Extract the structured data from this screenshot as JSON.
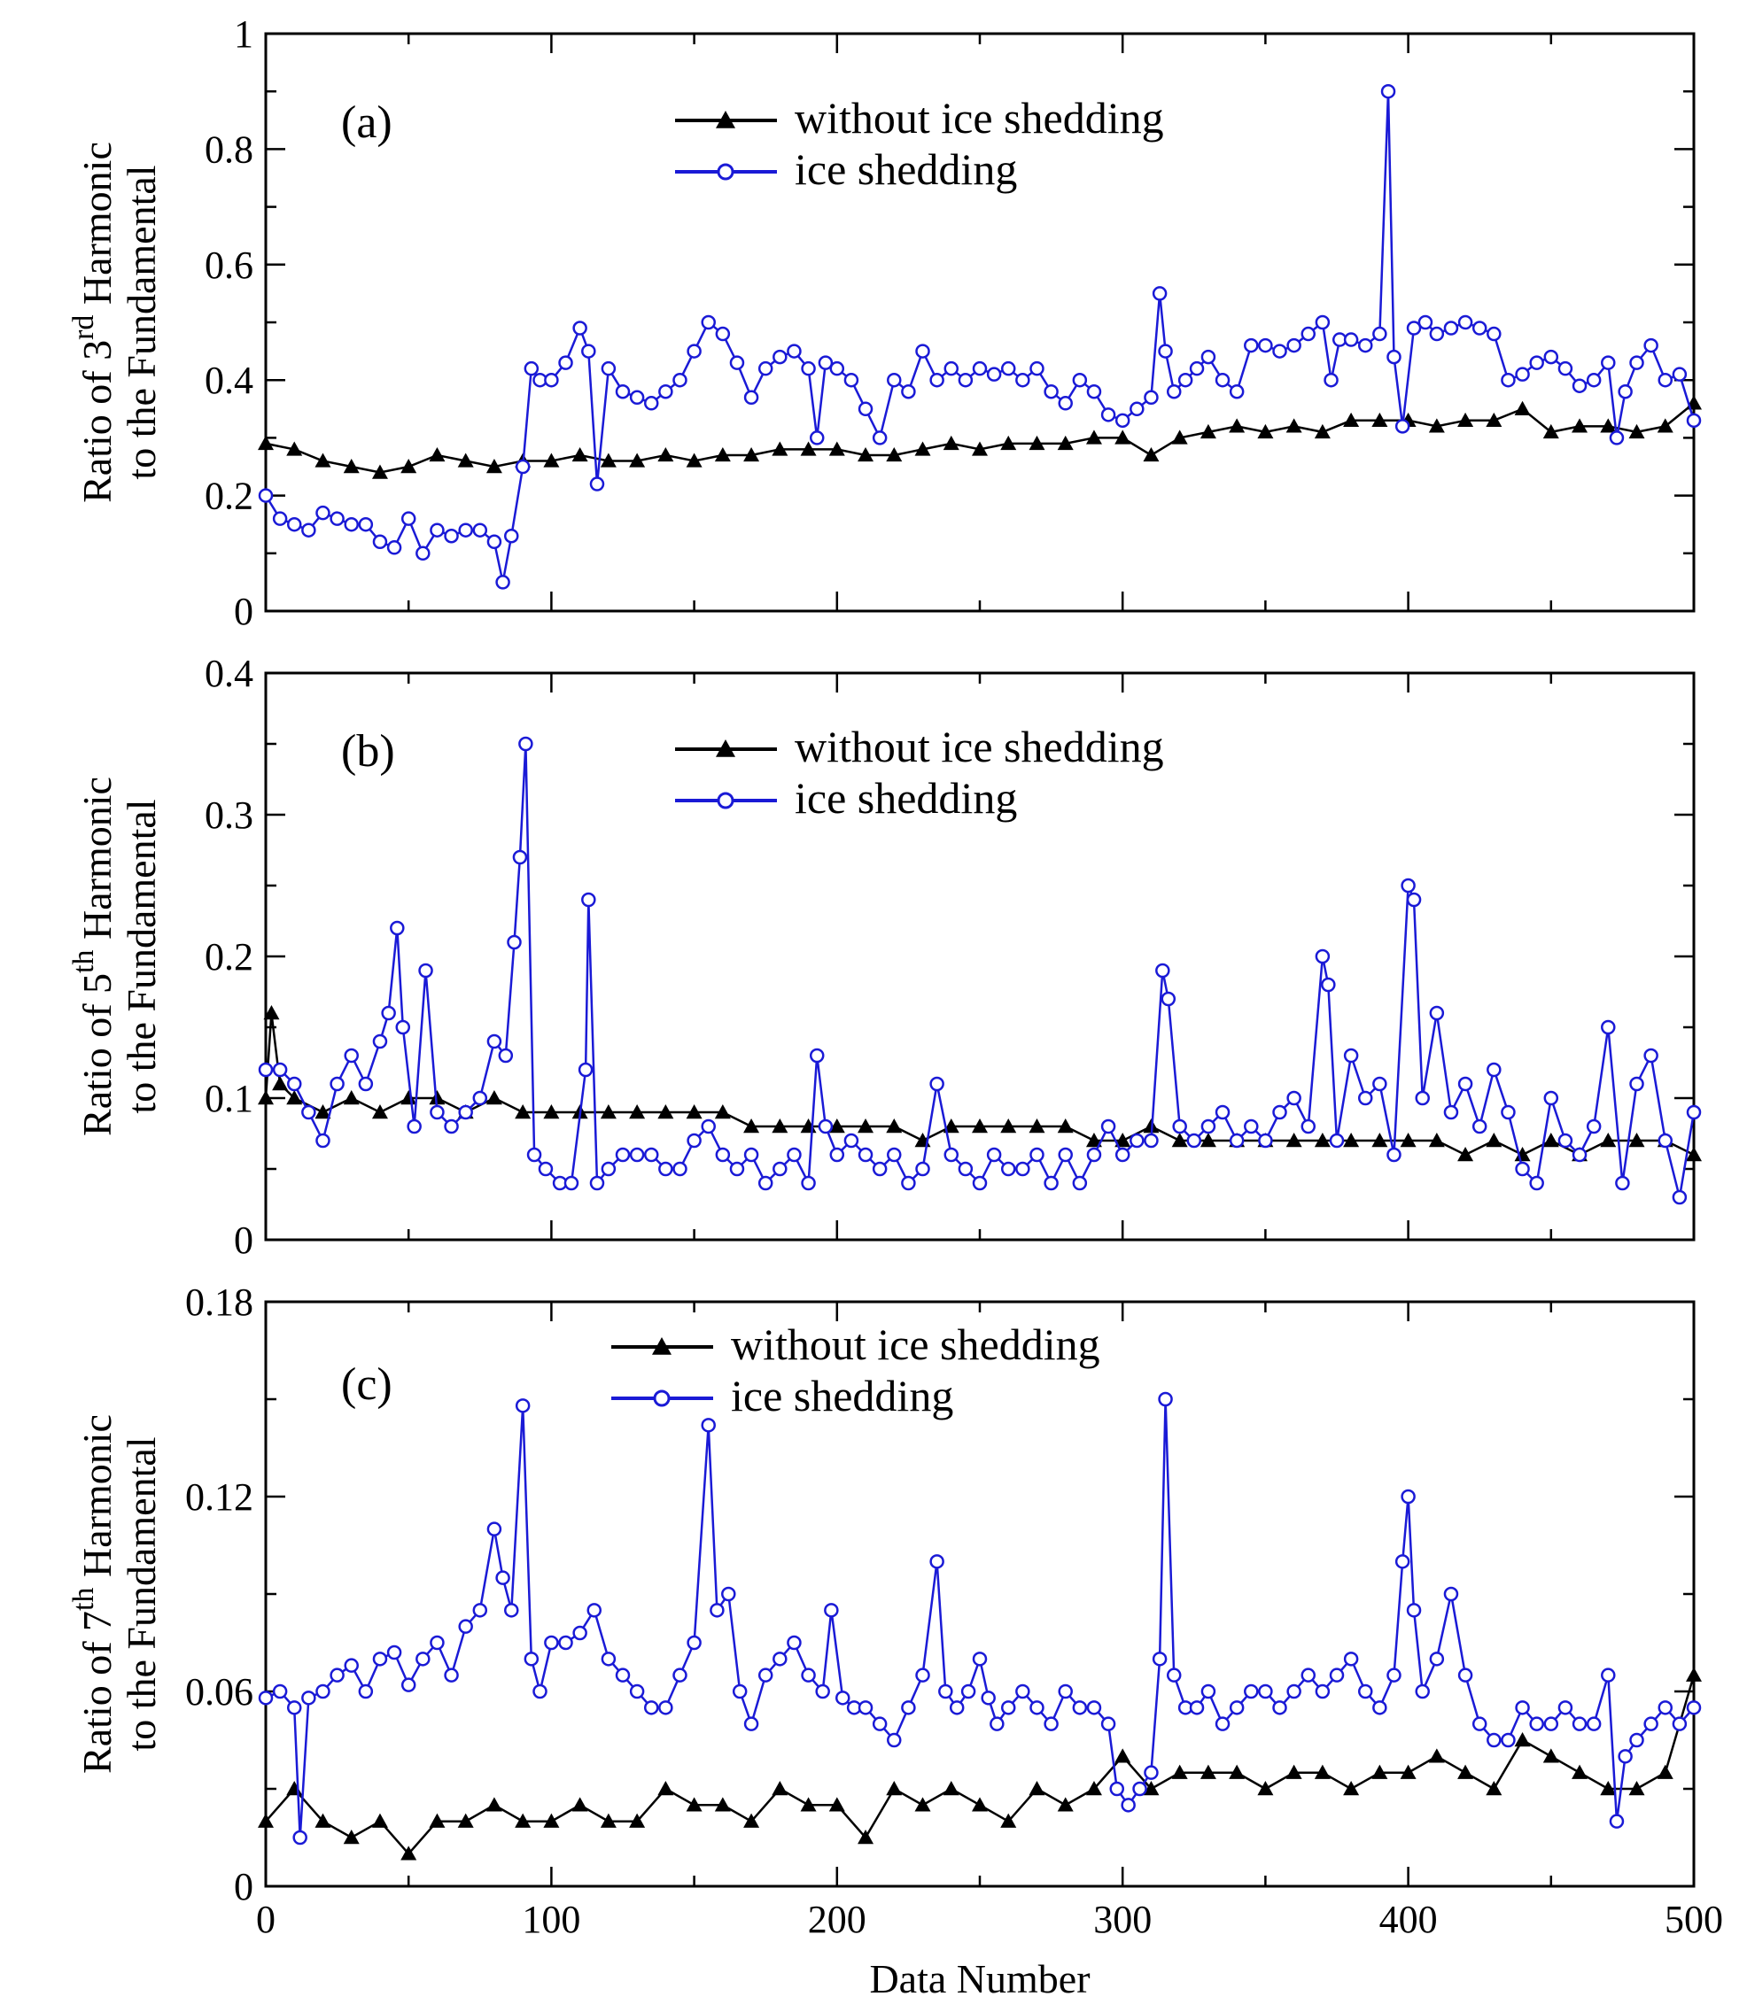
{
  "figure": {
    "xlabel": "Data Number",
    "x_tick_labels": [
      "0",
      "100",
      "200",
      "300",
      "400",
      "500"
    ]
  },
  "colors": {
    "without": "#000000",
    "ice": "#1a1ad6"
  },
  "chart_data": [
    {
      "type": "line",
      "panel_label": "(a)",
      "ylabel_line1": {
        "pre": "Ratio of  3",
        "sup": "rd",
        "post": " Harmonic"
      },
      "ylabel_line2": "to the Fundamental",
      "xlim": [
        0,
        500
      ],
      "ylim": [
        0,
        1
      ],
      "y_tick_labels": [
        "0",
        "0.2",
        "0.4",
        "0.6",
        "0.8",
        "1"
      ],
      "y_tick_values": [
        0,
        0.2,
        0.4,
        0.6,
        0.8,
        1
      ],
      "series": [
        {
          "name": "without ice shedding",
          "marker": "triangle",
          "x": [
            0,
            10,
            20,
            30,
            40,
            50,
            60,
            70,
            80,
            90,
            100,
            110,
            120,
            130,
            140,
            150,
            160,
            170,
            180,
            190,
            200,
            210,
            220,
            230,
            240,
            250,
            260,
            270,
            280,
            290,
            300,
            310,
            320,
            330,
            340,
            350,
            360,
            370,
            380,
            390,
            400,
            410,
            420,
            430,
            440,
            450,
            460,
            470,
            480,
            490,
            500
          ],
          "values": [
            0.29,
            0.28,
            0.26,
            0.25,
            0.24,
            0.25,
            0.27,
            0.26,
            0.25,
            0.26,
            0.26,
            0.27,
            0.26,
            0.26,
            0.27,
            0.26,
            0.27,
            0.27,
            0.28,
            0.28,
            0.28,
            0.27,
            0.27,
            0.28,
            0.29,
            0.28,
            0.29,
            0.29,
            0.29,
            0.3,
            0.3,
            0.27,
            0.3,
            0.31,
            0.32,
            0.31,
            0.32,
            0.31,
            0.33,
            0.33,
            0.33,
            0.32,
            0.33,
            0.33,
            0.35,
            0.31,
            0.32,
            0.32,
            0.31,
            0.32,
            0.36
          ]
        },
        {
          "name": "ice shedding",
          "marker": "circle",
          "x": [
            0,
            5,
            10,
            15,
            20,
            25,
            30,
            35,
            40,
            45,
            50,
            55,
            60,
            65,
            70,
            75,
            80,
            83,
            86,
            90,
            93,
            96,
            100,
            105,
            110,
            113,
            116,
            120,
            125,
            130,
            135,
            140,
            145,
            150,
            155,
            160,
            165,
            170,
            175,
            180,
            185,
            190,
            193,
            196,
            200,
            205,
            210,
            215,
            220,
            225,
            230,
            235,
            240,
            245,
            250,
            255,
            260,
            265,
            270,
            275,
            280,
            285,
            290,
            295,
            300,
            305,
            310,
            313,
            315,
            318,
            322,
            326,
            330,
            335,
            340,
            345,
            350,
            355,
            360,
            365,
            370,
            373,
            376,
            380,
            385,
            390,
            393,
            395,
            398,
            402,
            406,
            410,
            415,
            420,
            425,
            430,
            435,
            440,
            445,
            450,
            455,
            460,
            465,
            470,
            473,
            476,
            480,
            485,
            490,
            495,
            500
          ],
          "values": [
            0.2,
            0.16,
            0.15,
            0.14,
            0.17,
            0.16,
            0.15,
            0.15,
            0.12,
            0.11,
            0.16,
            0.1,
            0.14,
            0.13,
            0.14,
            0.14,
            0.12,
            0.05,
            0.13,
            0.25,
            0.42,
            0.4,
            0.4,
            0.43,
            0.49,
            0.45,
            0.22,
            0.42,
            0.38,
            0.37,
            0.36,
            0.38,
            0.4,
            0.45,
            0.5,
            0.48,
            0.43,
            0.37,
            0.42,
            0.44,
            0.45,
            0.42,
            0.3,
            0.43,
            0.42,
            0.4,
            0.35,
            0.3,
            0.4,
            0.38,
            0.45,
            0.4,
            0.42,
            0.4,
            0.42,
            0.41,
            0.42,
            0.4,
            0.42,
            0.38,
            0.36,
            0.4,
            0.38,
            0.34,
            0.33,
            0.35,
            0.37,
            0.55,
            0.45,
            0.38,
            0.4,
            0.42,
            0.44,
            0.4,
            0.38,
            0.46,
            0.46,
            0.45,
            0.46,
            0.48,
            0.5,
            0.4,
            0.47,
            0.47,
            0.46,
            0.48,
            0.9,
            0.44,
            0.32,
            0.49,
            0.5,
            0.48,
            0.49,
            0.5,
            0.49,
            0.48,
            0.4,
            0.41,
            0.43,
            0.44,
            0.42,
            0.39,
            0.4,
            0.43,
            0.3,
            0.38,
            0.43,
            0.46,
            0.4,
            0.41,
            0.33
          ]
        }
      ]
    },
    {
      "type": "line",
      "panel_label": "(b)",
      "ylabel_line1": {
        "pre": "Ratio of  5",
        "sup": "th",
        "post": " Harmonic"
      },
      "ylabel_line2": "to the Fundamental",
      "xlim": [
        0,
        500
      ],
      "ylim": [
        0,
        0.4
      ],
      "y_tick_labels": [
        "0",
        "0.1",
        "0.2",
        "0.3",
        "0.4"
      ],
      "y_tick_values": [
        0,
        0.1,
        0.2,
        0.3,
        0.4
      ],
      "series": [
        {
          "name": "without ice shedding",
          "marker": "triangle",
          "x": [
            0,
            2,
            5,
            10,
            20,
            30,
            40,
            50,
            60,
            70,
            80,
            90,
            100,
            110,
            120,
            130,
            140,
            150,
            160,
            170,
            180,
            190,
            200,
            210,
            220,
            230,
            240,
            250,
            260,
            270,
            280,
            290,
            300,
            310,
            320,
            330,
            340,
            350,
            360,
            370,
            380,
            390,
            400,
            410,
            420,
            430,
            440,
            450,
            460,
            470,
            480,
            490,
            500
          ],
          "values": [
            0.1,
            0.16,
            0.11,
            0.1,
            0.09,
            0.1,
            0.09,
            0.1,
            0.1,
            0.09,
            0.1,
            0.09,
            0.09,
            0.09,
            0.09,
            0.09,
            0.09,
            0.09,
            0.09,
            0.08,
            0.08,
            0.08,
            0.08,
            0.08,
            0.08,
            0.07,
            0.08,
            0.08,
            0.08,
            0.08,
            0.08,
            0.07,
            0.07,
            0.08,
            0.07,
            0.07,
            0.07,
            0.07,
            0.07,
            0.07,
            0.07,
            0.07,
            0.07,
            0.07,
            0.06,
            0.07,
            0.06,
            0.07,
            0.06,
            0.07,
            0.07,
            0.07,
            0.06
          ]
        },
        {
          "name": "ice shedding",
          "marker": "circle",
          "x": [
            0,
            5,
            10,
            15,
            20,
            25,
            30,
            35,
            40,
            43,
            46,
            48,
            52,
            56,
            60,
            65,
            70,
            75,
            80,
            84,
            87,
            89,
            91,
            94,
            98,
            103,
            107,
            112,
            113,
            116,
            120,
            125,
            130,
            135,
            140,
            145,
            150,
            155,
            160,
            165,
            170,
            175,
            180,
            185,
            190,
            193,
            196,
            200,
            205,
            210,
            215,
            220,
            225,
            230,
            235,
            240,
            245,
            250,
            255,
            260,
            265,
            270,
            275,
            280,
            285,
            290,
            295,
            300,
            305,
            310,
            314,
            316,
            320,
            325,
            330,
            335,
            340,
            345,
            350,
            355,
            360,
            365,
            370,
            372,
            375,
            380,
            385,
            390,
            395,
            400,
            402,
            405,
            410,
            415,
            420,
            425,
            430,
            435,
            440,
            445,
            450,
            455,
            460,
            465,
            470,
            475,
            480,
            485,
            490,
            495,
            500
          ],
          "values": [
            0.12,
            0.12,
            0.11,
            0.09,
            0.07,
            0.11,
            0.13,
            0.11,
            0.14,
            0.16,
            0.22,
            0.15,
            0.08,
            0.19,
            0.09,
            0.08,
            0.09,
            0.1,
            0.14,
            0.13,
            0.21,
            0.27,
            0.35,
            0.06,
            0.05,
            0.04,
            0.04,
            0.12,
            0.24,
            0.04,
            0.05,
            0.06,
            0.06,
            0.06,
            0.05,
            0.05,
            0.07,
            0.08,
            0.06,
            0.05,
            0.06,
            0.04,
            0.05,
            0.06,
            0.04,
            0.13,
            0.08,
            0.06,
            0.07,
            0.06,
            0.05,
            0.06,
            0.04,
            0.05,
            0.11,
            0.06,
            0.05,
            0.04,
            0.06,
            0.05,
            0.05,
            0.06,
            0.04,
            0.06,
            0.04,
            0.06,
            0.08,
            0.06,
            0.07,
            0.07,
            0.19,
            0.17,
            0.08,
            0.07,
            0.08,
            0.09,
            0.07,
            0.08,
            0.07,
            0.09,
            0.1,
            0.08,
            0.2,
            0.18,
            0.07,
            0.13,
            0.1,
            0.11,
            0.06,
            0.25,
            0.24,
            0.1,
            0.16,
            0.09,
            0.11,
            0.08,
            0.12,
            0.09,
            0.05,
            0.04,
            0.1,
            0.07,
            0.06,
            0.08,
            0.15,
            0.04,
            0.11,
            0.13,
            0.07,
            0.03,
            0.09
          ]
        }
      ]
    },
    {
      "type": "line",
      "panel_label": "(c)",
      "ylabel_line1": {
        "pre": "Ratio of  7",
        "sup": "th",
        "post": " Harmonic"
      },
      "ylabel_line2": "to the Fundamental",
      "xlim": [
        0,
        500
      ],
      "ylim": [
        0,
        0.18
      ],
      "y_tick_labels": [
        "0",
        "0.06",
        "0.12",
        "0.18"
      ],
      "y_tick_values": [
        0,
        0.06,
        0.12,
        0.18
      ],
      "series": [
        {
          "name": "without ice shedding",
          "marker": "triangle",
          "x": [
            0,
            10,
            20,
            30,
            40,
            50,
            60,
            70,
            80,
            90,
            100,
            110,
            120,
            130,
            140,
            150,
            160,
            170,
            180,
            190,
            200,
            210,
            220,
            230,
            240,
            250,
            260,
            270,
            280,
            290,
            300,
            310,
            320,
            330,
            340,
            350,
            360,
            370,
            380,
            390,
            400,
            410,
            420,
            430,
            440,
            450,
            460,
            470,
            480,
            490,
            500
          ],
          "values": [
            0.02,
            0.03,
            0.02,
            0.015,
            0.02,
            0.01,
            0.02,
            0.02,
            0.025,
            0.02,
            0.02,
            0.025,
            0.02,
            0.02,
            0.03,
            0.025,
            0.025,
            0.02,
            0.03,
            0.025,
            0.025,
            0.015,
            0.03,
            0.025,
            0.03,
            0.025,
            0.02,
            0.03,
            0.025,
            0.03,
            0.04,
            0.03,
            0.035,
            0.035,
            0.035,
            0.03,
            0.035,
            0.035,
            0.03,
            0.035,
            0.035,
            0.04,
            0.035,
            0.03,
            0.045,
            0.04,
            0.035,
            0.03,
            0.03,
            0.035,
            0.065
          ]
        },
        {
          "name": "ice shedding",
          "marker": "circle",
          "x": [
            0,
            5,
            10,
            12,
            15,
            20,
            25,
            30,
            35,
            40,
            45,
            50,
            55,
            60,
            65,
            70,
            75,
            80,
            83,
            86,
            90,
            93,
            96,
            100,
            105,
            110,
            115,
            120,
            125,
            130,
            135,
            140,
            145,
            150,
            155,
            158,
            162,
            166,
            170,
            175,
            180,
            185,
            190,
            195,
            198,
            202,
            206,
            210,
            215,
            220,
            225,
            230,
            235,
            238,
            242,
            246,
            250,
            253,
            256,
            260,
            265,
            270,
            275,
            280,
            285,
            290,
            295,
            298,
            302,
            306,
            310,
            313,
            315,
            318,
            322,
            326,
            330,
            335,
            340,
            345,
            350,
            355,
            360,
            365,
            370,
            375,
            380,
            385,
            390,
            395,
            398,
            400,
            402,
            405,
            410,
            415,
            420,
            425,
            430,
            435,
            440,
            445,
            450,
            455,
            460,
            465,
            470,
            473,
            476,
            480,
            485,
            490,
            495,
            500
          ],
          "values": [
            0.058,
            0.06,
            0.055,
            0.015,
            0.058,
            0.06,
            0.065,
            0.068,
            0.06,
            0.07,
            0.072,
            0.062,
            0.07,
            0.075,
            0.065,
            0.08,
            0.085,
            0.11,
            0.095,
            0.085,
            0.148,
            0.07,
            0.06,
            0.075,
            0.075,
            0.078,
            0.085,
            0.07,
            0.065,
            0.06,
            0.055,
            0.055,
            0.065,
            0.075,
            0.142,
            0.085,
            0.09,
            0.06,
            0.05,
            0.065,
            0.07,
            0.075,
            0.065,
            0.06,
            0.085,
            0.058,
            0.055,
            0.055,
            0.05,
            0.045,
            0.055,
            0.065,
            0.1,
            0.06,
            0.055,
            0.06,
            0.07,
            0.058,
            0.05,
            0.055,
            0.06,
            0.055,
            0.05,
            0.06,
            0.055,
            0.055,
            0.05,
            0.03,
            0.025,
            0.03,
            0.035,
            0.07,
            0.15,
            0.065,
            0.055,
            0.055,
            0.06,
            0.05,
            0.055,
            0.06,
            0.06,
            0.055,
            0.06,
            0.065,
            0.06,
            0.065,
            0.07,
            0.06,
            0.055,
            0.065,
            0.1,
            0.12,
            0.085,
            0.06,
            0.07,
            0.09,
            0.065,
            0.05,
            0.045,
            0.045,
            0.055,
            0.05,
            0.05,
            0.055,
            0.05,
            0.05,
            0.065,
            0.02,
            0.04,
            0.045,
            0.05,
            0.055,
            0.05,
            0.055
          ]
        }
      ]
    }
  ]
}
